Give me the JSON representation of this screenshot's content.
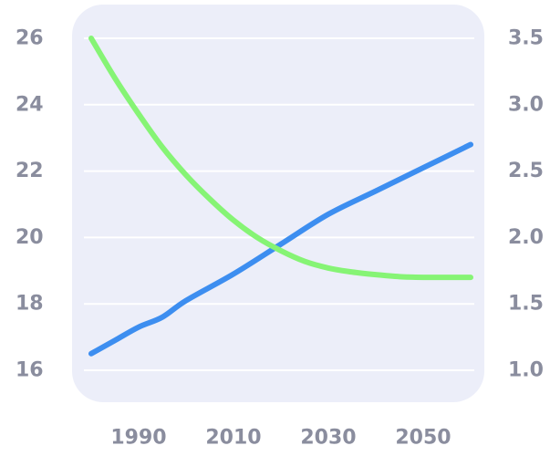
{
  "chart_data": {
    "type": "line",
    "title": "",
    "xlabel": "",
    "ylabel": "",
    "x_ticks": [
      "1990",
      "2010",
      "2030",
      "2050"
    ],
    "x_tick_values": [
      1990,
      2010,
      2030,
      2050
    ],
    "xlim": [
      1980,
      2060
    ],
    "y_left_ticks": [
      "16",
      "18",
      "20",
      "22",
      "24",
      "26"
    ],
    "y_left_values": [
      16,
      18,
      20,
      22,
      24,
      26
    ],
    "ylim_left": [
      16,
      26
    ],
    "y_right_ticks": [
      "1.0",
      "1.5",
      "2.0",
      "2.5",
      "3.0",
      "3.5"
    ],
    "y_right_values": [
      1.0,
      1.5,
      2.0,
      2.5,
      3.0,
      3.5
    ],
    "ylim_right": [
      1.0,
      3.5
    ],
    "grid": true,
    "series": [
      {
        "axis": "left",
        "color": "#3d8ef0",
        "x": [
          1980,
          1985,
          1990,
          1995,
          2000,
          2010,
          2020,
          2030,
          2040,
          2050,
          2060
        ],
        "y": [
          16.5,
          16.9,
          17.3,
          17.6,
          18.1,
          18.9,
          19.8,
          20.7,
          21.4,
          22.1,
          22.8
        ]
      },
      {
        "axis": "right",
        "color": "#86f475",
        "x": [
          1980,
          1985,
          1990,
          1995,
          2000,
          2005,
          2010,
          2015,
          2020,
          2025,
          2030,
          2035,
          2040,
          2045,
          2050,
          2055,
          2060
        ],
        "y": [
          3.5,
          3.2,
          2.93,
          2.68,
          2.47,
          2.29,
          2.13,
          2.0,
          1.9,
          1.82,
          1.77,
          1.74,
          1.72,
          1.705,
          1.7,
          1.7,
          1.7
        ]
      }
    ],
    "colors": {
      "plot_background": "#eceef9",
      "grid": "#ffffff",
      "tick_label": "#8a8d9e"
    }
  }
}
